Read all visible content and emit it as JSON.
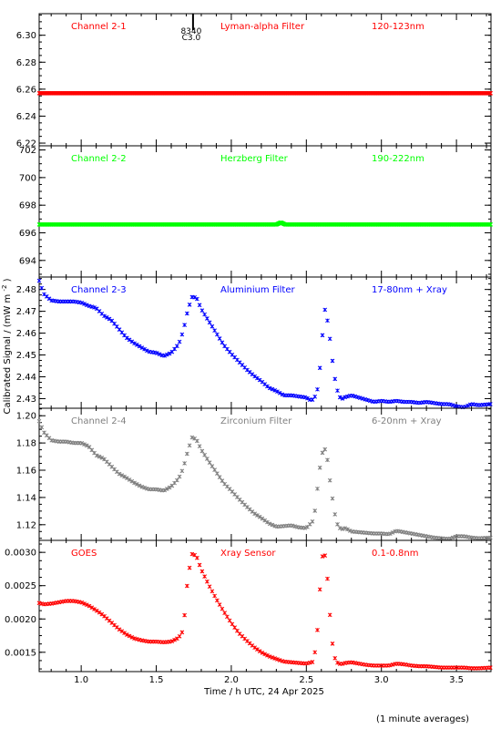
{
  "chart_data": {
    "type": "scatter",
    "x_axis": {
      "label": "Time / h UTC, 24 Apr 2025",
      "range": [
        0.72,
        3.73
      ],
      "ticks": [
        1.0,
        1.5,
        2.0,
        2.5,
        3.0,
        3.5
      ],
      "tick_labels": [
        "1.0",
        "1.5",
        "2.0",
        "2.5",
        "3.0",
        "3.5"
      ]
    },
    "ylabel": "Calibrated Signal / (mW m",
    "ylabel_sup": "-2",
    "ylabel_close": ")",
    "footnote": "(1 minute averages)",
    "marker_annotation": {
      "x": 1.745,
      "line1": "8340",
      "line2": "C3.0"
    },
    "panels": [
      {
        "channel": "Channel 2-1",
        "filter": "Lyman-alpha Filter",
        "band": "120-123nm",
        "color": "#ff0000",
        "ylim": [
          6.218,
          6.316
        ],
        "yticks": [
          6.22,
          6.24,
          6.26,
          6.28,
          6.3
        ],
        "ytick_labels": [
          "6.22",
          "6.24",
          "6.26",
          "6.28",
          "6.30"
        ],
        "points": [
          [
            0.72,
            6.257
          ],
          [
            3.73,
            6.257
          ]
        ]
      },
      {
        "channel": "Channel 2-2",
        "filter": "Herzberg Filter",
        "band": "190-222nm",
        "color": "#00ff00",
        "ylim": [
          692.8,
          702.3
        ],
        "yticks": [
          694,
          696,
          698,
          700,
          702
        ],
        "ytick_labels": [
          "694",
          "696",
          "698",
          "700",
          "702"
        ],
        "points": [
          [
            0.72,
            696.6
          ],
          [
            1.5,
            696.6
          ],
          [
            1.95,
            696.6
          ],
          [
            2.3,
            696.6
          ],
          [
            2.33,
            696.75
          ],
          [
            2.36,
            696.6
          ],
          [
            3.73,
            696.6
          ]
        ]
      },
      {
        "channel": "Channel 2-3",
        "filter": "Aluminium Filter",
        "band": "17-80nm + Xray",
        "color": "#0000ff",
        "ylim": [
          2.4256,
          2.4857
        ],
        "yticks": [
          2.43,
          2.44,
          2.45,
          2.46,
          2.47,
          2.48
        ],
        "ytick_labels": [
          "2.43",
          "2.44",
          "2.45",
          "2.46",
          "2.47",
          "2.48"
        ],
        "points": [
          [
            0.72,
            2.484
          ],
          [
            0.75,
            2.478
          ],
          [
            0.8,
            2.475
          ],
          [
            0.85,
            2.4745
          ],
          [
            0.9,
            2.4745
          ],
          [
            0.95,
            2.4745
          ],
          [
            1.0,
            2.474
          ],
          [
            1.05,
            2.4725
          ],
          [
            1.1,
            2.4715
          ],
          [
            1.15,
            2.468
          ],
          [
            1.2,
            2.466
          ],
          [
            1.25,
            2.462
          ],
          [
            1.3,
            2.458
          ],
          [
            1.35,
            2.4555
          ],
          [
            1.4,
            2.4535
          ],
          [
            1.45,
            2.4515
          ],
          [
            1.5,
            2.451
          ],
          [
            1.55,
            2.4495
          ],
          [
            1.6,
            2.451
          ],
          [
            1.65,
            2.455
          ],
          [
            1.68,
            2.461
          ],
          [
            1.71,
            2.4705
          ],
          [
            1.74,
            2.4768
          ],
          [
            1.77,
            2.476
          ],
          [
            1.8,
            2.471
          ],
          [
            1.85,
            2.4655
          ],
          [
            1.9,
            2.46
          ],
          [
            1.95,
            2.4545
          ],
          [
            2.0,
            2.4505
          ],
          [
            2.05,
            2.447
          ],
          [
            2.1,
            2.4435
          ],
          [
            2.15,
            2.4405
          ],
          [
            2.2,
            2.438
          ],
          [
            2.25,
            2.435
          ],
          [
            2.3,
            2.4335
          ],
          [
            2.35,
            2.4315
          ],
          [
            2.4,
            2.4315
          ],
          [
            2.45,
            2.431
          ],
          [
            2.5,
            2.4305
          ],
          [
            2.52,
            2.4295
          ],
          [
            2.55,
            2.4295
          ],
          [
            2.58,
            2.4355
          ],
          [
            2.6,
            2.452
          ],
          [
            2.62,
            2.4718
          ],
          [
            2.64,
            2.466
          ],
          [
            2.66,
            2.456
          ],
          [
            2.68,
            2.4435
          ],
          [
            2.7,
            2.435
          ],
          [
            2.73,
            2.4295
          ],
          [
            2.75,
            2.4305
          ],
          [
            2.8,
            2.4315
          ],
          [
            2.85,
            2.4305
          ],
          [
            2.9,
            2.4295
          ],
          [
            2.95,
            2.4285
          ],
          [
            3.0,
            2.429
          ],
          [
            3.05,
            2.4285
          ],
          [
            3.1,
            2.429
          ],
          [
            3.15,
            2.4285
          ],
          [
            3.2,
            2.4285
          ],
          [
            3.25,
            2.428
          ],
          [
            3.3,
            2.4285
          ],
          [
            3.35,
            2.428
          ],
          [
            3.4,
            2.4275
          ],
          [
            3.45,
            2.4275
          ],
          [
            3.5,
            2.4265
          ],
          [
            3.55,
            2.426
          ],
          [
            3.6,
            2.4275
          ],
          [
            3.65,
            2.427
          ],
          [
            3.73,
            2.4275
          ]
        ]
      },
      {
        "channel": "Channel 2-4",
        "filter": "Zirconium Filter",
        "band": "6-20nm + Xray",
        "color": "#808080",
        "ylim": [
          1.1085,
          1.2055
        ],
        "yticks": [
          1.12,
          1.14,
          1.16,
          1.18,
          1.2
        ],
        "ytick_labels": [
          "1.12",
          "1.14",
          "1.16",
          "1.18",
          "1.20"
        ],
        "points": [
          [
            0.72,
            1.196
          ],
          [
            0.75,
            1.188
          ],
          [
            0.8,
            1.182
          ],
          [
            0.85,
            1.181
          ],
          [
            0.9,
            1.181
          ],
          [
            0.95,
            1.18
          ],
          [
            1.0,
            1.18
          ],
          [
            1.05,
            1.1775
          ],
          [
            1.1,
            1.171
          ],
          [
            1.15,
            1.1685
          ],
          [
            1.2,
            1.163
          ],
          [
            1.25,
            1.1575
          ],
          [
            1.3,
            1.1545
          ],
          [
            1.35,
            1.151
          ],
          [
            1.4,
            1.148
          ],
          [
            1.45,
            1.146
          ],
          [
            1.5,
            1.146
          ],
          [
            1.55,
            1.145
          ],
          [
            1.6,
            1.148
          ],
          [
            1.65,
            1.154
          ],
          [
            1.68,
            1.1615
          ],
          [
            1.71,
            1.174
          ],
          [
            1.74,
            1.1845
          ],
          [
            1.77,
            1.182
          ],
          [
            1.8,
            1.175
          ],
          [
            1.85,
            1.1665
          ],
          [
            1.9,
            1.1585
          ],
          [
            1.95,
            1.1505
          ],
          [
            2.0,
            1.145
          ],
          [
            2.05,
            1.139
          ],
          [
            2.1,
            1.1335
          ],
          [
            2.15,
            1.1285
          ],
          [
            2.2,
            1.125
          ],
          [
            2.25,
            1.121
          ],
          [
            2.3,
            1.1185
          ],
          [
            2.35,
            1.119
          ],
          [
            2.4,
            1.1195
          ],
          [
            2.45,
            1.118
          ],
          [
            2.5,
            1.1175
          ],
          [
            2.55,
            1.1235
          ],
          [
            2.58,
            1.1525
          ],
          [
            2.6,
            1.1705
          ],
          [
            2.62,
            1.177
          ],
          [
            2.64,
            1.168
          ],
          [
            2.66,
            1.15
          ],
          [
            2.68,
            1.1345
          ],
          [
            2.7,
            1.1215
          ],
          [
            2.73,
            1.1165
          ],
          [
            2.76,
            1.1175
          ],
          [
            2.8,
            1.115
          ],
          [
            2.85,
            1.1145
          ],
          [
            2.9,
            1.114
          ],
          [
            2.95,
            1.1135
          ],
          [
            3.0,
            1.1135
          ],
          [
            3.05,
            1.113
          ],
          [
            3.1,
            1.1155
          ],
          [
            3.15,
            1.1145
          ],
          [
            3.2,
            1.1135
          ],
          [
            3.25,
            1.1125
          ],
          [
            3.3,
            1.1115
          ],
          [
            3.35,
            1.1105
          ],
          [
            3.4,
            1.11
          ],
          [
            3.45,
            1.1095
          ],
          [
            3.5,
            1.1115
          ],
          [
            3.55,
            1.1115
          ],
          [
            3.6,
            1.1105
          ],
          [
            3.65,
            1.11
          ],
          [
            3.73,
            1.1105
          ]
        ]
      },
      {
        "channel": "GOES",
        "filter": "Xray Sensor",
        "band": "0.1-0.8nm",
        "color": "#ff0000",
        "ylim": [
          0.00121,
          0.00318
        ],
        "yticks": [
          0.0015,
          0.002,
          0.0025,
          0.003
        ],
        "ytick_labels": [
          "0.0015",
          "0.0020",
          "0.0025",
          "0.0030"
        ],
        "points": [
          [
            0.72,
            0.00224
          ],
          [
            0.75,
            0.00222
          ],
          [
            0.8,
            0.00223
          ],
          [
            0.85,
            0.00225
          ],
          [
            0.9,
            0.00227
          ],
          [
            0.95,
            0.00227
          ],
          [
            1.0,
            0.00225
          ],
          [
            1.05,
            0.0022
          ],
          [
            1.1,
            0.00213
          ],
          [
            1.15,
            0.00205
          ],
          [
            1.2,
            0.00195
          ],
          [
            1.25,
            0.00185
          ],
          [
            1.3,
            0.00177
          ],
          [
            1.35,
            0.00171
          ],
          [
            1.4,
            0.00168
          ],
          [
            1.45,
            0.00166
          ],
          [
            1.5,
            0.00166
          ],
          [
            1.55,
            0.00165
          ],
          [
            1.6,
            0.00166
          ],
          [
            1.65,
            0.00172
          ],
          [
            1.68,
            0.00183
          ],
          [
            1.71,
            0.00262
          ],
          [
            1.74,
            0.00299
          ],
          [
            1.77,
            0.00293
          ],
          [
            1.8,
            0.00274
          ],
          [
            1.85,
            0.00251
          ],
          [
            1.9,
            0.0023
          ],
          [
            1.95,
            0.00211
          ],
          [
            2.0,
            0.00194
          ],
          [
            2.05,
            0.00179
          ],
          [
            2.1,
            0.00168
          ],
          [
            2.15,
            0.00158
          ],
          [
            2.2,
            0.0015
          ],
          [
            2.25,
            0.00144
          ],
          [
            2.3,
            0.0014
          ],
          [
            2.35,
            0.00136
          ],
          [
            2.4,
            0.00135
          ],
          [
            2.45,
            0.00134
          ],
          [
            2.5,
            0.00133
          ],
          [
            2.55,
            0.00136
          ],
          [
            2.58,
            0.00196
          ],
          [
            2.6,
            0.00289
          ],
          [
            2.62,
            0.00303
          ],
          [
            2.64,
            0.00262
          ],
          [
            2.66,
            0.00197
          ],
          [
            2.68,
            0.00148
          ],
          [
            2.7,
            0.00135
          ],
          [
            2.73,
            0.00132
          ],
          [
            2.76,
            0.00134
          ],
          [
            2.8,
            0.00135
          ],
          [
            2.85,
            0.00133
          ],
          [
            2.9,
            0.00131
          ],
          [
            2.95,
            0.0013
          ],
          [
            3.0,
            0.0013
          ],
          [
            3.05,
            0.0013
          ],
          [
            3.1,
            0.00133
          ],
          [
            3.15,
            0.00132
          ],
          [
            3.2,
            0.0013
          ],
          [
            3.25,
            0.00129
          ],
          [
            3.3,
            0.00129
          ],
          [
            3.35,
            0.00128
          ],
          [
            3.4,
            0.00127
          ],
          [
            3.45,
            0.00127
          ],
          [
            3.5,
            0.00127
          ],
          [
            3.55,
            0.00127
          ],
          [
            3.6,
            0.00126
          ],
          [
            3.65,
            0.00126
          ],
          [
            3.73,
            0.00127
          ]
        ]
      }
    ]
  }
}
